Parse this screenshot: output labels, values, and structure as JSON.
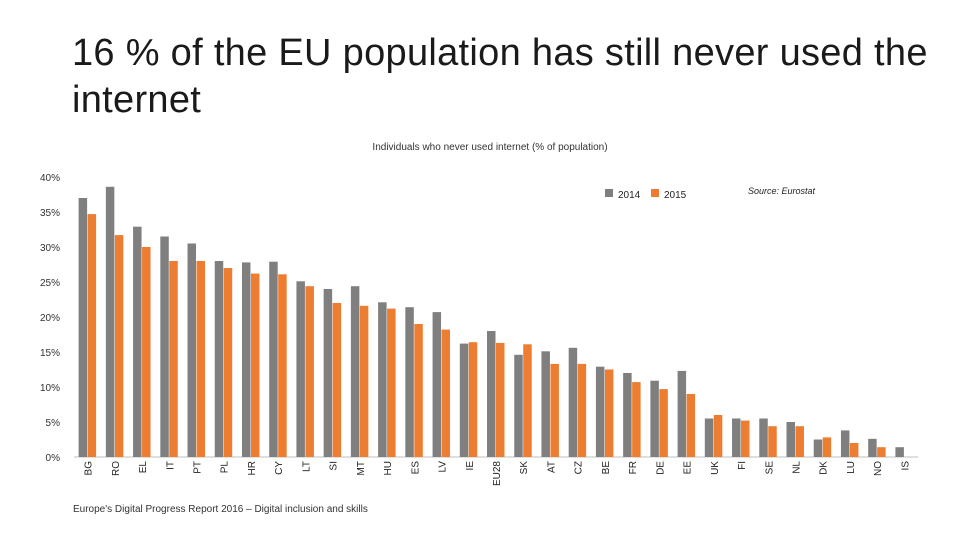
{
  "slide": {
    "title": "16 % of the EU population has still never used the internet",
    "footer": "Europe's Digital Progress Report 2016 – Digital inclusion and skills"
  },
  "colors": {
    "series_2014": "#7f7f7f",
    "series_2015": "#ed7d31",
    "axis": "#bfbfbf",
    "text": "#222222"
  },
  "chart_data": {
    "type": "bar",
    "title": "Individuals who never used internet (% of population)",
    "source": "Source: Eurostat",
    "xlabel": "",
    "ylabel": "",
    "ylim": [
      0,
      40
    ],
    "y_ticks": [
      "0%",
      "5%",
      "10%",
      "15%",
      "20%",
      "25%",
      "30%",
      "35%",
      "40%"
    ],
    "y_tick_values": [
      0,
      5,
      10,
      15,
      20,
      25,
      30,
      35,
      40
    ],
    "legend_position": "top-right",
    "categories": [
      "BG",
      "RO",
      "EL",
      "IT",
      "PT",
      "PL",
      "HR",
      "CY",
      "LT",
      "SI",
      "MT",
      "HU",
      "ES",
      "LV",
      "IE",
      "EU28",
      "SK",
      "AT",
      "CZ",
      "BE",
      "FR",
      "DE",
      "EE",
      "UK",
      "FI",
      "SE",
      "NL",
      "DK",
      "LU",
      "NO",
      "IS"
    ],
    "series": [
      {
        "name": "2014",
        "values": [
          37.0,
          38.6,
          32.9,
          31.5,
          30.5,
          28.0,
          27.8,
          27.9,
          25.1,
          24.0,
          24.4,
          22.1,
          21.4,
          20.7,
          16.2,
          18.0,
          14.6,
          15.1,
          15.6,
          12.9,
          12.0,
          10.9,
          12.3,
          5.5,
          5.5,
          5.5,
          5.0,
          2.5,
          3.8,
          2.6,
          1.4
        ]
      },
      {
        "name": "2015",
        "values": [
          34.7,
          31.7,
          30.0,
          28.0,
          28.0,
          27.0,
          26.2,
          26.1,
          24.4,
          22.0,
          21.6,
          21.2,
          19.0,
          18.2,
          16.4,
          16.3,
          16.1,
          13.3,
          13.3,
          12.5,
          10.7,
          9.7,
          9.0,
          6.0,
          5.2,
          4.4,
          4.4,
          2.8,
          2.0,
          1.4,
          0.0
        ]
      }
    ]
  }
}
